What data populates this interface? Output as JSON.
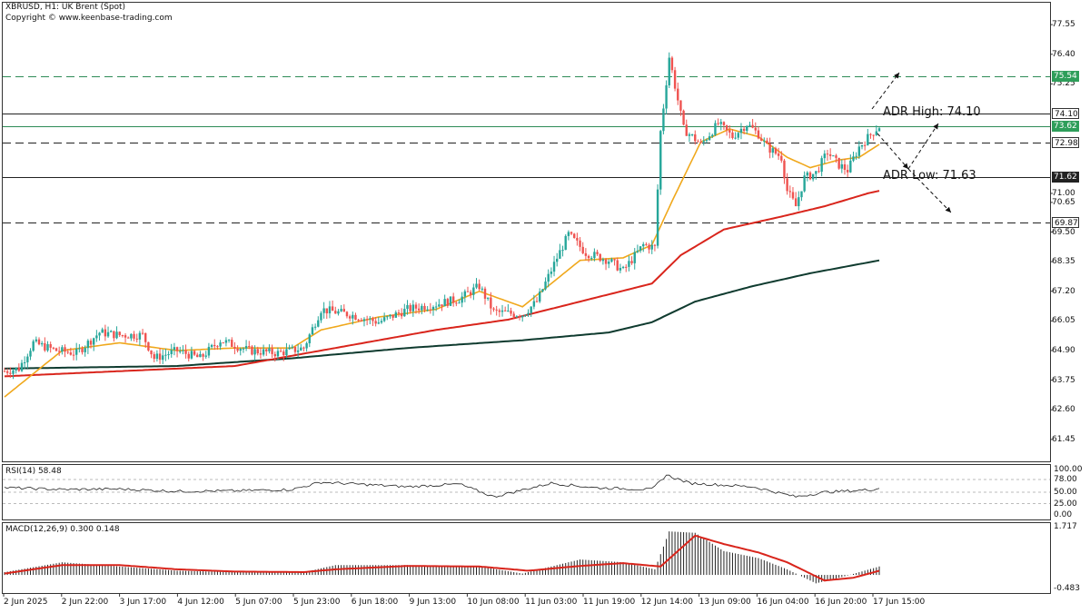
{
  "header": {
    "title": "XBRUSD, H1:  UK Brent (Spot)",
    "copyright": "Copyright © www.keenbase-trading.com"
  },
  "colors": {
    "bull": "#26a69a",
    "bear": "#ef5350",
    "ema_fast": "#f0a81c",
    "ema_mid": "#d9251c",
    "ema_slow": "#0f3b2f",
    "macd_signal": "#d9251c",
    "grid": "#d0d0d0"
  },
  "price_axis": {
    "ticks": [
      "77.55",
      "76.40",
      "75.25",
      "74.10",
      "73.62",
      "72.98",
      "71.62",
      "71.00",
      "70.65",
      "69.87",
      "69.50",
      "68.35",
      "67.20",
      "66.05",
      "64.90",
      "63.75",
      "62.60",
      "61.45"
    ],
    "ylim": [
      60.6,
      78.4
    ]
  },
  "levels": [
    {
      "value": "75.54",
      "style": "dashed",
      "badge": "green"
    },
    {
      "value": "74.10",
      "style": "solid",
      "badge": "white"
    },
    {
      "value": "73.62",
      "style": "solid",
      "badge": "green"
    },
    {
      "value": "72.98",
      "style": "dashed",
      "badge": "white"
    },
    {
      "value": "71.62",
      "style": "solid",
      "badge": "dark"
    },
    {
      "value": "69.87",
      "style": "dashed",
      "badge": "white"
    }
  ],
  "annotations": {
    "adr_high": "ADR High: 74.10",
    "adr_low": "ADR Low: 71.63"
  },
  "rsi": {
    "label": "RSI(14) 58.48",
    "ticks": [
      "100.00",
      "78.00",
      "50.00",
      "25.00",
      "0.00"
    ]
  },
  "macd": {
    "label": "MACD(12,26,9) 0.300 0.148",
    "ticks": [
      "1.717",
      "-0.483"
    ]
  },
  "x_axis": {
    "ticks": [
      "2 Jun 2025",
      "2 Jun 22:00",
      "3 Jun 17:00",
      "4 Jun 12:00",
      "5 Jun 07:00",
      "5 Jun 23:00",
      "6 Jun 18:00",
      "9 Jun 13:00",
      "10 Jun 08:00",
      "11 Jun 03:00",
      "11 Jun 19:00",
      "12 Jun 14:00",
      "13 Jun 09:00",
      "16 Jun 04:00",
      "16 Jun 20:00",
      "17 Jun 15:00"
    ]
  },
  "chart_data": {
    "type": "candlestick",
    "title": "XBRUSD, H1:  UK Brent (Spot)",
    "ylim": [
      60.6,
      78.4
    ],
    "anchor_path": [
      [
        0,
        64.1
      ],
      [
        5,
        64.2
      ],
      [
        10,
        65.2
      ],
      [
        18,
        64.9
      ],
      [
        25,
        64.8
      ],
      [
        33,
        65.6
      ],
      [
        40,
        65.5
      ],
      [
        48,
        65.5
      ],
      [
        52,
        64.6
      ],
      [
        60,
        64.9
      ],
      [
        68,
        64.6
      ],
      [
        75,
        65.3
      ],
      [
        85,
        64.9
      ],
      [
        95,
        64.8
      ],
      [
        104,
        65.0
      ],
      [
        110,
        66.5
      ],
      [
        120,
        66.3
      ],
      [
        130,
        66.0
      ],
      [
        140,
        66.5
      ],
      [
        150,
        66.7
      ],
      [
        158,
        66.9
      ],
      [
        165,
        67.4
      ],
      [
        170,
        66.4
      ],
      [
        180,
        66.3
      ],
      [
        185,
        66.8
      ],
      [
        192,
        68.5
      ],
      [
        196,
        69.4
      ],
      [
        202,
        68.7
      ],
      [
        210,
        68.4
      ],
      [
        215,
        68.0
      ],
      [
        222,
        69.0
      ],
      [
        226,
        68.9
      ],
      [
        228,
        73.4
      ],
      [
        231,
        76.3
      ],
      [
        236,
        73.5
      ],
      [
        242,
        72.9
      ],
      [
        248,
        73.7
      ],
      [
        253,
        73.2
      ],
      [
        258,
        73.7
      ],
      [
        262,
        73.3
      ],
      [
        265,
        72.8
      ],
      [
        270,
        72.4
      ],
      [
        272,
        71.1
      ],
      [
        275,
        70.5
      ],
      [
        278,
        71.6
      ],
      [
        282,
        71.8
      ],
      [
        286,
        72.6
      ],
      [
        290,
        72.1
      ],
      [
        293,
        71.9
      ],
      [
        297,
        72.8
      ],
      [
        302,
        73.4
      ],
      [
        304,
        73.6
      ]
    ],
    "ema_fast_path": [
      [
        0,
        63.1
      ],
      [
        20,
        64.9
      ],
      [
        40,
        65.2
      ],
      [
        60,
        64.9
      ],
      [
        80,
        65.0
      ],
      [
        100,
        65.0
      ],
      [
        110,
        65.7
      ],
      [
        130,
        66.2
      ],
      [
        150,
        66.5
      ],
      [
        165,
        67.2
      ],
      [
        180,
        66.6
      ],
      [
        190,
        67.5
      ],
      [
        200,
        68.4
      ],
      [
        215,
        68.5
      ],
      [
        225,
        69.0
      ],
      [
        232,
        70.7
      ],
      [
        242,
        73.0
      ],
      [
        252,
        73.5
      ],
      [
        262,
        73.2
      ],
      [
        272,
        72.4
      ],
      [
        280,
        72.0
      ],
      [
        290,
        72.3
      ],
      [
        297,
        72.4
      ],
      [
        304,
        72.9
      ]
    ],
    "ema_mid_path": [
      [
        0,
        63.9
      ],
      [
        40,
        64.1
      ],
      [
        80,
        64.3
      ],
      [
        110,
        64.9
      ],
      [
        150,
        65.7
      ],
      [
        175,
        66.1
      ],
      [
        200,
        66.8
      ],
      [
        225,
        67.5
      ],
      [
        235,
        68.6
      ],
      [
        250,
        69.6
      ],
      [
        270,
        70.1
      ],
      [
        285,
        70.5
      ],
      [
        300,
        71.0
      ],
      [
        304,
        71.1
      ]
    ],
    "ema_slow_path": [
      [
        0,
        64.2
      ],
      [
        60,
        64.3
      ],
      [
        100,
        64.6
      ],
      [
        140,
        65.0
      ],
      [
        180,
        65.3
      ],
      [
        210,
        65.6
      ],
      [
        225,
        66.0
      ],
      [
        240,
        66.8
      ],
      [
        260,
        67.4
      ],
      [
        280,
        67.9
      ],
      [
        304,
        68.4
      ]
    ],
    "rsi_path": [
      [
        0,
        60
      ],
      [
        20,
        56
      ],
      [
        40,
        57
      ],
      [
        60,
        52
      ],
      [
        80,
        53
      ],
      [
        100,
        56
      ],
      [
        110,
        72
      ],
      [
        140,
        62
      ],
      [
        158,
        68
      ],
      [
        170,
        40
      ],
      [
        190,
        70
      ],
      [
        205,
        60
      ],
      [
        225,
        56
      ],
      [
        230,
        88
      ],
      [
        238,
        70
      ],
      [
        260,
        62
      ],
      [
        275,
        40
      ],
      [
        285,
        50
      ],
      [
        300,
        55
      ],
      [
        304,
        58.48
      ]
    ],
    "macd_path": [
      [
        0,
        0.1
      ],
      [
        20,
        0.45
      ],
      [
        40,
        0.3
      ],
      [
        60,
        0.15
      ],
      [
        80,
        0.1
      ],
      [
        104,
        0.1
      ],
      [
        115,
        0.35
      ],
      [
        140,
        0.35
      ],
      [
        165,
        0.3
      ],
      [
        180,
        0.05
      ],
      [
        200,
        0.55
      ],
      [
        215,
        0.45
      ],
      [
        226,
        0.2
      ],
      [
        231,
        1.55
      ],
      [
        240,
        1.5
      ],
      [
        250,
        0.85
      ],
      [
        262,
        0.6
      ],
      [
        272,
        0.2
      ],
      [
        282,
        -0.3
      ],
      [
        292,
        -0.05
      ],
      [
        304,
        0.3
      ]
    ],
    "signal_path": [
      [
        0,
        0.05
      ],
      [
        20,
        0.35
      ],
      [
        40,
        0.35
      ],
      [
        60,
        0.2
      ],
      [
        80,
        0.12
      ],
      [
        104,
        0.1
      ],
      [
        115,
        0.2
      ],
      [
        140,
        0.32
      ],
      [
        165,
        0.3
      ],
      [
        182,
        0.15
      ],
      [
        200,
        0.32
      ],
      [
        215,
        0.42
      ],
      [
        228,
        0.3
      ],
      [
        240,
        1.4
      ],
      [
        250,
        1.1
      ],
      [
        262,
        0.8
      ],
      [
        272,
        0.45
      ],
      [
        285,
        -0.2
      ],
      [
        295,
        -0.1
      ],
      [
        304,
        0.148
      ]
    ],
    "macd_ylim": [
      -0.483,
      1.717
    ]
  }
}
